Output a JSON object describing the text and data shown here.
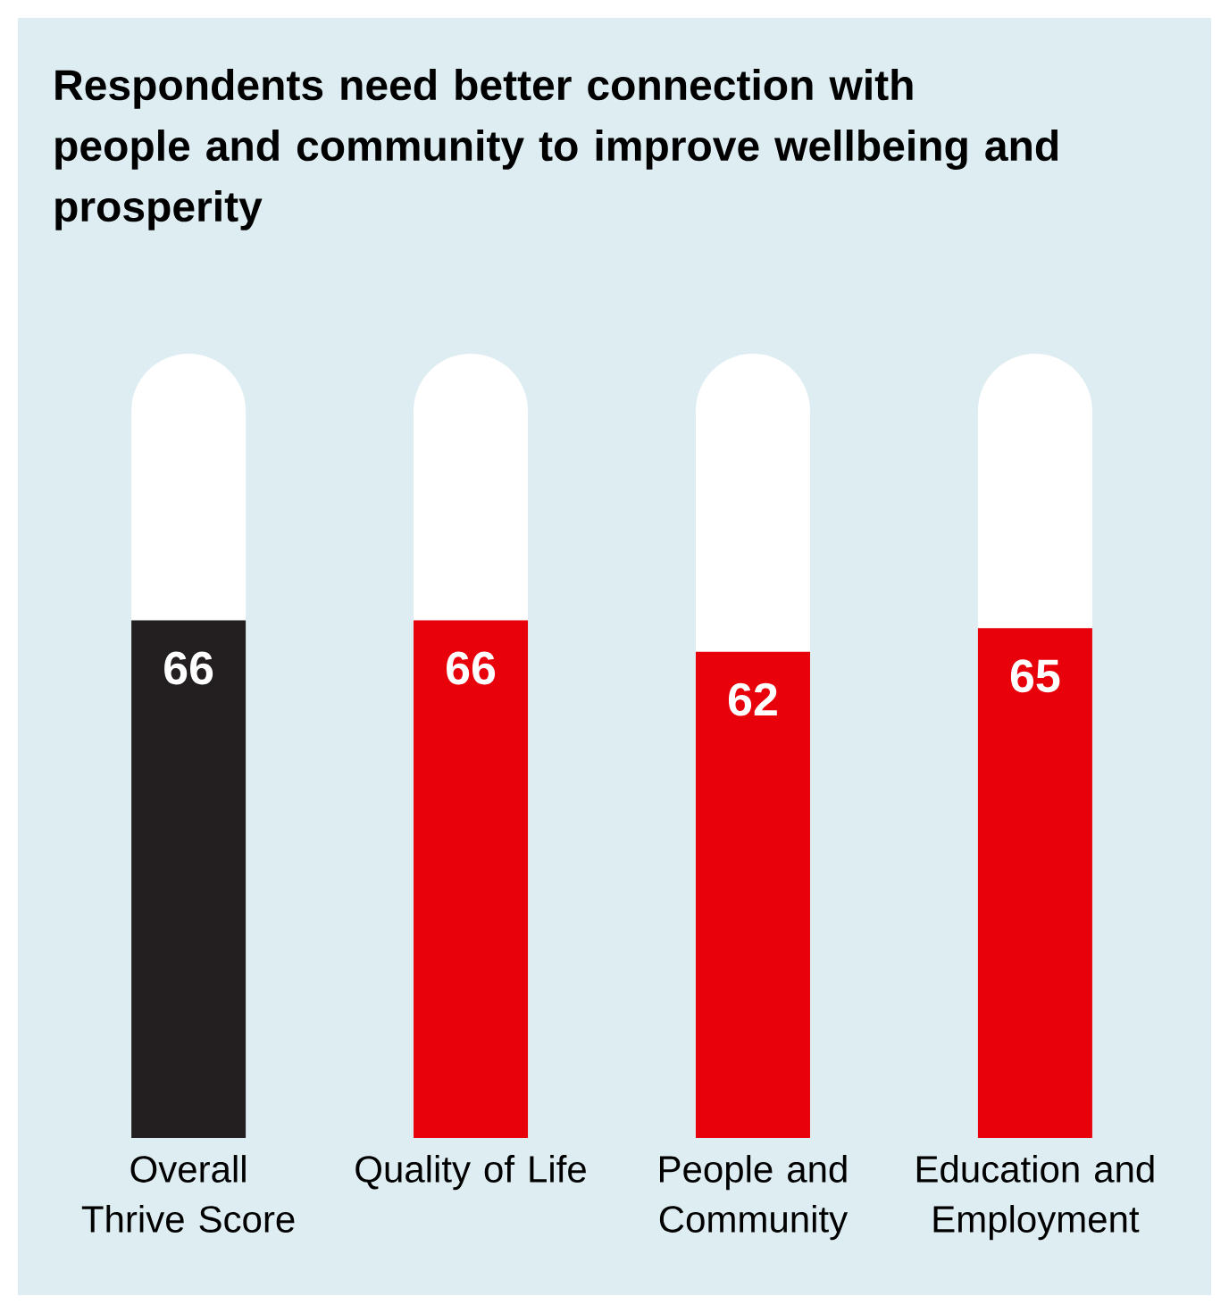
{
  "chart_data": {
    "type": "bar",
    "title": "Respondents need better connection with people and community to improve wellbeing and prosperity",
    "categories": [
      "Overall Thrive Score",
      "Quality of Life",
      "People and Community",
      "Education and Employment"
    ],
    "values": [
      66,
      66,
      62,
      65
    ],
    "colors": [
      "#231f20",
      "#e8000b",
      "#e8000b",
      "#e8000b"
    ],
    "ylim": [
      0,
      100
    ],
    "data_labels": true
  }
}
